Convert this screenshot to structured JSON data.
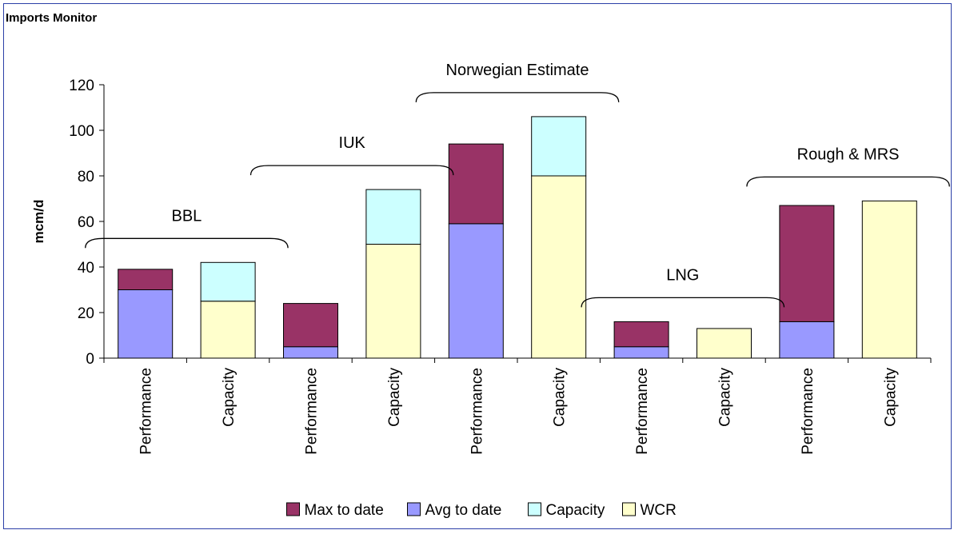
{
  "header": {
    "title": "Imports Monitor"
  },
  "chart_data": {
    "type": "bar",
    "stacked": true,
    "title": "",
    "xlabel": "",
    "ylabel": "mcm/d",
    "ylim": [
      0,
      120
    ],
    "yticks": [
      0,
      20,
      40,
      60,
      80,
      100,
      120
    ],
    "grid": false,
    "legend_position": "bottom",
    "categories": [
      "Performance",
      "Capacity",
      "Performance",
      "Capacity",
      "Performance",
      "Capacity",
      "Performance",
      "Capacity",
      "Performance",
      "Capacity"
    ],
    "series": [
      {
        "name": "Max to date",
        "color": "#993366",
        "values": [
          9,
          0,
          19,
          0,
          35,
          0,
          11,
          0,
          51,
          0
        ]
      },
      {
        "name": "Avg to date",
        "color": "#9999ff",
        "values": [
          30,
          0,
          5,
          0,
          59,
          0,
          5,
          0,
          16,
          0
        ]
      },
      {
        "name": "Capacity",
        "color": "#ccffff",
        "values": [
          0,
          17,
          0,
          24,
          0,
          26,
          0,
          0,
          0,
          0
        ]
      },
      {
        "name": "WCR",
        "color": "#ffffcc",
        "values": [
          0,
          25,
          0,
          50,
          0,
          80,
          0,
          13,
          0,
          69
        ]
      }
    ],
    "stack_order": [
      "Avg to date",
      "WCR",
      "Capacity",
      "Max to date"
    ],
    "groups": [
      {
        "label": "BBL",
        "start": 0,
        "end": 1
      },
      {
        "label": "IUK",
        "start": 2,
        "end": 3
      },
      {
        "label": "Norwegian Estimate",
        "start": 4,
        "end": 5
      },
      {
        "label": "LNG",
        "start": 6,
        "end": 7
      },
      {
        "label": "Rough & MRS",
        "start": 8,
        "end": 9
      }
    ]
  }
}
